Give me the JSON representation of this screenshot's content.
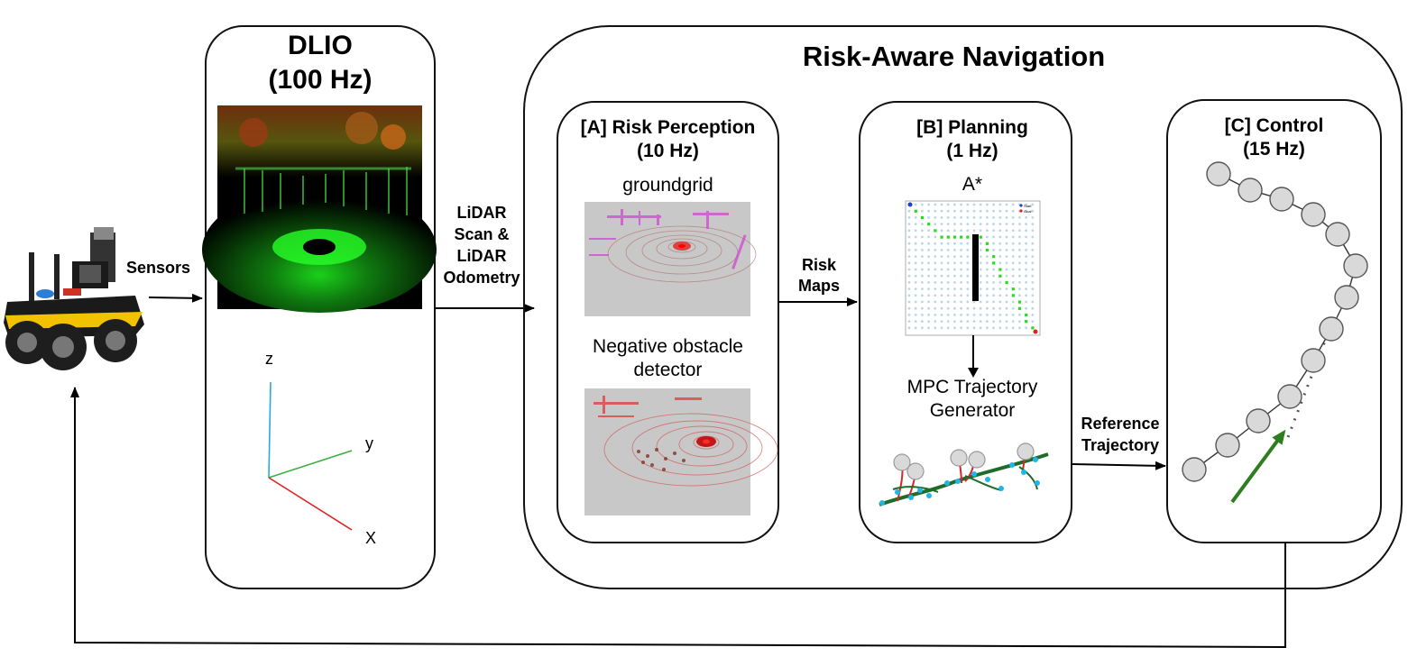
{
  "dlio": {
    "title": "DLIO",
    "rate": "(100 Hz)"
  },
  "axes": {
    "z": "z",
    "y": "y",
    "x": "X"
  },
  "edges": {
    "sensors": "Sensors",
    "lidar_line1": "LiDAR",
    "lidar_line2": "Scan &",
    "lidar_line3": "LiDAR",
    "lidar_line4": "Odometry",
    "risk_line1": "Risk",
    "risk_line2": "Maps",
    "ref_line1": "Reference",
    "ref_line2": "Trajectory"
  },
  "navigation": {
    "title": "Risk-Aware Navigation"
  },
  "perception": {
    "title": "[A] Risk Perception",
    "rate": "(10 Hz)",
    "groundgrid": "groundgrid",
    "negative_line1": "Negative obstacle",
    "negative_line2": "detector"
  },
  "planning": {
    "title": "[B] Planning",
    "rate": "(1 Hz)",
    "astar": "A*",
    "legend_start": "Start",
    "legend_goal": "Goal",
    "mpc_line1": "MPC Trajectory",
    "mpc_line2": "Generator"
  },
  "control": {
    "title": "[C] Control",
    "rate": "(15 Hz)"
  },
  "colors": {
    "axis_z": "#29a8e0",
    "axis_y": "#3cb043",
    "axis_x": "#e02020",
    "path_green": "#22dd22",
    "arrow_green": "#2e7d1f",
    "node_fill": "#d9d9d9",
    "traj_dark": "#1f6b2a",
    "traj_red": "#d62728",
    "traj_cyan": "#1fb5e8",
    "robot_yellow": "#f2c200"
  }
}
